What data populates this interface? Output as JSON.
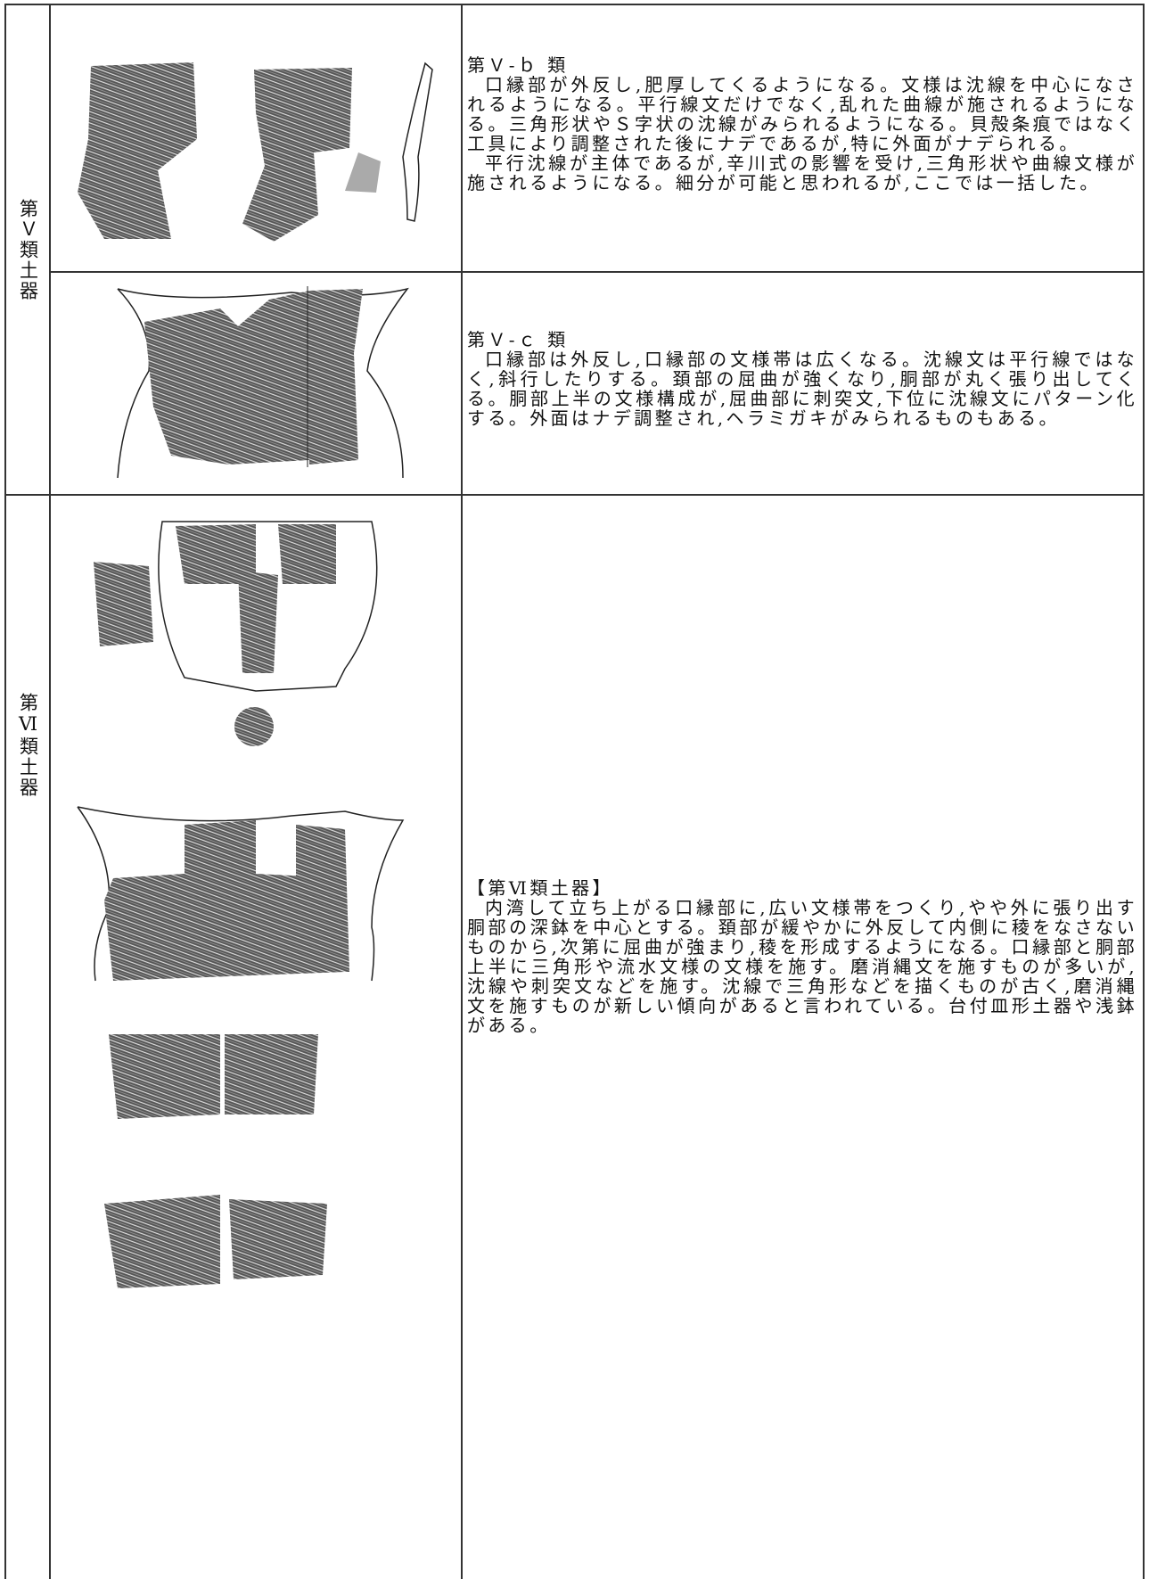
{
  "table": {
    "rows": [
      {
        "label": "第Ｖ類土器",
        "heading": "第Ｖ-ｂ 類",
        "paragraphs": [
          "口縁部が外反し,肥厚してくるようになる。文様は沈線を中心になされるようになる。平行線文だけでなく,乱れた曲線が施されるようになる。三角形状やＳ字状の沈線がみられるようになる。貝殻条痕ではなく工具により調整された後にナデであるが,特に外面がナデられる。",
          "平行沈線が主体であるが,辛川式の影響を受け,三角形状や曲線文様が施されるようになる。細分が可能と思われるが,ここでは一括した。"
        ]
      },
      {
        "heading": "第Ｖ-ｃ 類",
        "paragraphs": [
          "口縁部は外反し,口縁部の文様帯は広くなる。沈線文は平行線ではなく,斜行したりする。頚部の屈曲が強くなり,胴部が丸く張り出してくる。胴部上半の文様構成が,屈曲部に刺突文,下位に沈線文にパターン化する。外面はナデ調整され,ヘラミガキがみられるものもある。"
        ]
      },
      {
        "label": "第Ⅵ類土器",
        "heading": "【第Ⅵ類土器】",
        "paragraphs": [
          "内湾して立ち上がる口縁部に,広い文様帯をつくり,やや外に張り出す胴部の深鉢を中心とする。頚部が緩やかに外反して内側に稜をなさないものから,次第に屈曲が強まり,稜を形成するようになる。口縁部と胴部上半に三角形や流水文様の文様を施す。磨消縄文を施すものが多いが,沈線や刺突文などを施す。沈線で三角形などを描くものが古く,磨消縄文を施すものが新しい傾向があると言われている。台付皿形土器や浅鉢がある。"
        ]
      }
    ]
  }
}
